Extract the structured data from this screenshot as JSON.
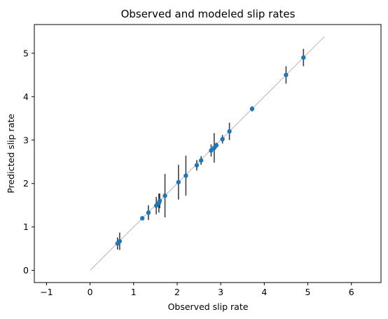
{
  "chart_data": {
    "type": "scatter",
    "title": "Observed and modeled slip rates",
    "xlabel": "Observed slip rate",
    "ylabel": "Predicted slip rate",
    "xlim": [
      -1.28,
      6.68
    ],
    "ylim": [
      -0.28,
      5.66
    ],
    "x_ticks": [
      -1,
      0,
      1,
      2,
      3,
      4,
      5,
      6
    ],
    "y_ticks": [
      0,
      1,
      2,
      3,
      4,
      5
    ],
    "grid": false,
    "reference_line": {
      "from": [
        0,
        0
      ],
      "to": [
        5.38,
        5.38
      ],
      "color": "#888888"
    },
    "marker_color": "#1f77b4",
    "errorbar_color": "#000000",
    "points": [
      {
        "x": 0.63,
        "y": 0.62,
        "yerr": 0.14,
        "xerr": 0.03
      },
      {
        "x": 0.68,
        "y": 0.67,
        "yerr": 0.2,
        "xerr": 0.03
      },
      {
        "x": 1.2,
        "y": 1.2,
        "yerr": 0.04,
        "xerr": 0.03
      },
      {
        "x": 1.34,
        "y": 1.33,
        "yerr": 0.17,
        "xerr": 0.04
      },
      {
        "x": 1.52,
        "y": 1.49,
        "yerr": 0.2,
        "xerr": 0.03
      },
      {
        "x": 1.58,
        "y": 1.55,
        "yerr": 0.22,
        "xerr": 0.03
      },
      {
        "x": 1.6,
        "y": 1.6,
        "yerr": 0.17,
        "xerr": 0.04
      },
      {
        "x": 1.72,
        "y": 1.72,
        "yerr": 0.5,
        "xerr": 0.03
      },
      {
        "x": 2.03,
        "y": 2.03,
        "yerr": 0.4,
        "xerr": 0.03
      },
      {
        "x": 2.2,
        "y": 2.18,
        "yerr": 0.46,
        "xerr": 0.03
      },
      {
        "x": 2.45,
        "y": 2.42,
        "yerr": 0.12,
        "xerr": 0.03
      },
      {
        "x": 2.55,
        "y": 2.53,
        "yerr": 0.1,
        "xerr": 0.03
      },
      {
        "x": 2.78,
        "y": 2.76,
        "yerr": 0.14,
        "xerr": 0.04
      },
      {
        "x": 2.85,
        "y": 2.82,
        "yerr": 0.34,
        "xerr": 0.03
      },
      {
        "x": 2.9,
        "y": 2.88,
        "yerr": 0.06,
        "xerr": 0.03
      },
      {
        "x": 3.04,
        "y": 3.02,
        "yerr": 0.1,
        "xerr": 0.03
      },
      {
        "x": 3.2,
        "y": 3.2,
        "yerr": 0.2,
        "xerr": 0.03
      },
      {
        "x": 3.72,
        "y": 3.72,
        "yerr": 0.06,
        "xerr": 0.03
      },
      {
        "x": 4.5,
        "y": 4.5,
        "yerr": 0.2,
        "xerr": 0.03
      },
      {
        "x": 4.9,
        "y": 4.9,
        "yerr": 0.2,
        "xerr": 0.03
      }
    ]
  }
}
